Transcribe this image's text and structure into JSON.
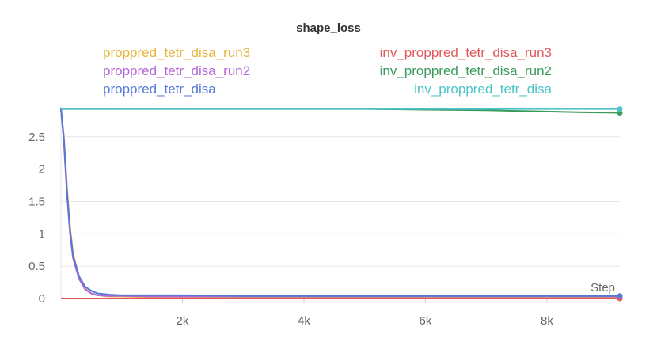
{
  "chart_data": {
    "type": "line",
    "title": "shape_loss",
    "xlabel": "Step",
    "ylabel": "",
    "xlim": [
      0,
      9200
    ],
    "ylim": [
      0,
      2.95
    ],
    "x_ticks": [
      2000,
      4000,
      6000,
      8000
    ],
    "x_tick_labels": [
      "2k",
      "4k",
      "6k",
      "8k"
    ],
    "y_ticks": [
      0,
      0.5,
      1,
      1.5,
      2,
      2.5
    ],
    "y_tick_labels": [
      "0",
      "0.5",
      "1",
      "1.5",
      "2",
      "2.5"
    ],
    "grid": true,
    "legend_placement": "top",
    "series": [
      {
        "name": "proppred_tetr_disa_run3",
        "color": "#e6b53a",
        "x": [
          0,
          50,
          100,
          150,
          200,
          300,
          400,
          500,
          600,
          800,
          1000,
          1500,
          2000,
          3000,
          4000,
          5000,
          6000,
          7000,
          8000,
          9200
        ],
        "y": [
          2.94,
          2.5,
          1.7,
          1.1,
          0.7,
          0.32,
          0.15,
          0.08,
          0.05,
          0.03,
          0.03,
          0.02,
          0.02,
          0.02,
          0.02,
          0.02,
          0.02,
          0.02,
          0.02,
          0.02
        ]
      },
      {
        "name": "inv_proppred_tetr_disa_run3",
        "color": "#e15759",
        "x": [
          0,
          9200
        ],
        "y": [
          0,
          0
        ]
      },
      {
        "name": "proppred_tetr_disa_run2",
        "color": "#b565d9",
        "x": [
          0,
          50,
          100,
          150,
          200,
          300,
          400,
          500,
          600,
          800,
          1000,
          1500,
          2000,
          3000,
          4000,
          5000,
          6000,
          7000,
          8000,
          9200
        ],
        "y": [
          2.94,
          2.4,
          1.6,
          1.0,
          0.62,
          0.3,
          0.14,
          0.08,
          0.05,
          0.04,
          0.04,
          0.03,
          0.03,
          0.03,
          0.03,
          0.03,
          0.03,
          0.03,
          0.03,
          0.03
        ]
      },
      {
        "name": "inv_proppred_tetr_disa_run2",
        "color": "#3a9a5b",
        "x": [
          0,
          1000,
          2000,
          3000,
          4000,
          5000,
          6000,
          7000,
          7500,
          8000,
          8500,
          9200
        ],
        "y": [
          2.93,
          2.93,
          2.93,
          2.93,
          2.93,
          2.93,
          2.92,
          2.91,
          2.9,
          2.89,
          2.88,
          2.87
        ]
      },
      {
        "name": "proppred_tetr_disa",
        "color": "#5479d9",
        "x": [
          0,
          50,
          100,
          150,
          200,
          300,
          400,
          500,
          600,
          800,
          1000,
          1500,
          2000,
          3000,
          4000,
          5000,
          6000,
          7000,
          8000,
          9200
        ],
        "y": [
          2.94,
          2.45,
          1.65,
          1.05,
          0.66,
          0.34,
          0.18,
          0.12,
          0.08,
          0.06,
          0.05,
          0.05,
          0.05,
          0.04,
          0.04,
          0.04,
          0.04,
          0.04,
          0.04,
          0.04
        ]
      },
      {
        "name": "inv_proppred_tetr_disa",
        "color": "#4fc4c8",
        "x": [
          0,
          1000,
          2000,
          3000,
          4000,
          5000,
          6000,
          7000,
          8000,
          9200
        ],
        "y": [
          2.93,
          2.93,
          2.93,
          2.93,
          2.93,
          2.93,
          2.93,
          2.93,
          2.93,
          2.93
        ]
      }
    ]
  }
}
